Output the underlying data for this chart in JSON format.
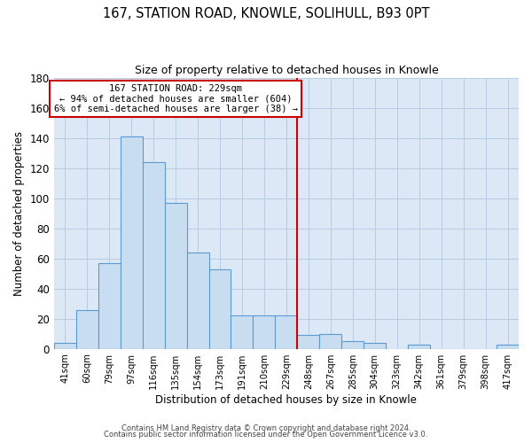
{
  "title": "167, STATION ROAD, KNOWLE, SOLIHULL, B93 0PT",
  "subtitle": "Size of property relative to detached houses in Knowle",
  "xlabel": "Distribution of detached houses by size in Knowle",
  "ylabel": "Number of detached properties",
  "bar_labels": [
    "41sqm",
    "60sqm",
    "79sqm",
    "97sqm",
    "116sqm",
    "135sqm",
    "154sqm",
    "173sqm",
    "191sqm",
    "210sqm",
    "229sqm",
    "248sqm",
    "267sqm",
    "285sqm",
    "304sqm",
    "323sqm",
    "342sqm",
    "361sqm",
    "379sqm",
    "398sqm",
    "417sqm"
  ],
  "bar_values": [
    4,
    26,
    57,
    141,
    124,
    97,
    64,
    53,
    22,
    22,
    22,
    9,
    10,
    5,
    4,
    0,
    3,
    0,
    0,
    0,
    3
  ],
  "bar_color": "#c9ddf0",
  "bar_edge_color": "#5b9bd5",
  "vline_x_index": 10,
  "vline_color": "#cc0000",
  "annotation_title": "167 STATION ROAD: 229sqm",
  "annotation_line1": "← 94% of detached houses are smaller (604)",
  "annotation_line2": "6% of semi-detached houses are larger (38) →",
  "annotation_box_color": "#ffffff",
  "annotation_box_edge": "#cc0000",
  "ylim": [
    0,
    180
  ],
  "yticks": [
    0,
    20,
    40,
    60,
    80,
    100,
    120,
    140,
    160,
    180
  ],
  "fig_bg_color": "#ffffff",
  "plot_bg_color": "#dce8f5",
  "grid_color": "#b8cce4",
  "footer1": "Contains HM Land Registry data © Crown copyright and database right 2024.",
  "footer2": "Contains public sector information licensed under the Open Government Licence v3.0."
}
